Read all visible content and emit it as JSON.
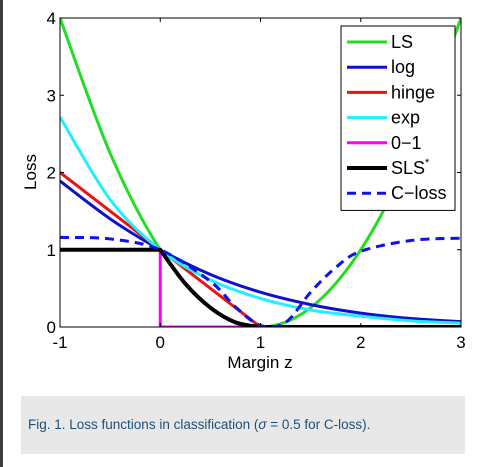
{
  "chart_data": {
    "type": "line",
    "xlabel": "Margin z",
    "ylabel": "Loss",
    "xlim": [
      -1,
      3
    ],
    "ylim": [
      0,
      4
    ],
    "xticks": [
      "-1",
      "0",
      "1",
      "2",
      "3"
    ],
    "yticks": [
      "0",
      "1",
      "2",
      "3",
      "4"
    ],
    "grid": false,
    "legend_position": "top-right",
    "series": [
      {
        "name": "LS",
        "color": "#22dd22",
        "dash": "solid",
        "x": [
          -1,
          -0.5,
          0,
          0.5,
          1,
          1.5,
          2,
          2.5,
          3
        ],
        "y": [
          4,
          2.25,
          1,
          0.25,
          0,
          0.25,
          1,
          2.25,
          4
        ]
      },
      {
        "name": "log",
        "color": "#1010cc",
        "dash": "solid",
        "x": [
          -1,
          -0.5,
          0,
          0.5,
          1,
          1.5,
          2,
          2.5,
          3
        ],
        "y": [
          1.89,
          1.4,
          1.0,
          0.68,
          0.45,
          0.29,
          0.18,
          0.11,
          0.07
        ]
      },
      {
        "name": "hinge",
        "color": "#ee1111",
        "dash": "solid",
        "x": [
          -1,
          0,
          1,
          3
        ],
        "y": [
          2,
          1,
          0,
          0
        ]
      },
      {
        "name": "exp",
        "color": "#22eeff",
        "dash": "solid",
        "x": [
          -1,
          -0.5,
          0,
          0.5,
          1,
          1.5,
          2,
          2.5,
          3
        ],
        "y": [
          2.72,
          1.65,
          1.0,
          0.61,
          0.37,
          0.22,
          0.14,
          0.08,
          0.05
        ]
      },
      {
        "name": "0−1",
        "color": "#ff00ff",
        "dash": "solid",
        "x": [
          -1,
          0,
          0,
          3
        ],
        "y": [
          1,
          1,
          0,
          0
        ]
      },
      {
        "name": "SLS",
        "name_sup": "*",
        "color": "#000000",
        "dash": "solid",
        "x": [
          -1,
          0,
          0.25,
          0.5,
          0.75,
          1,
          3
        ],
        "y": [
          1,
          1,
          0.56,
          0.25,
          0.06,
          0,
          0
        ]
      },
      {
        "name": "C−loss",
        "color": "#1010ee",
        "dash": "dashed",
        "x": [
          -1,
          -0.5,
          0,
          0.5,
          0.75,
          1,
          1.25,
          1.5,
          1.75,
          2,
          2.5,
          3
        ],
        "y": [
          1.16,
          1.14,
          1.0,
          0.59,
          0.26,
          0.02,
          0.06,
          0.45,
          0.77,
          0.98,
          1.12,
          1.15
        ]
      }
    ]
  },
  "caption": {
    "prefix": "Fig. 1. Loss functions in classification (",
    "sigma": "σ",
    "suffix": " = 0.5 for C-loss)."
  }
}
